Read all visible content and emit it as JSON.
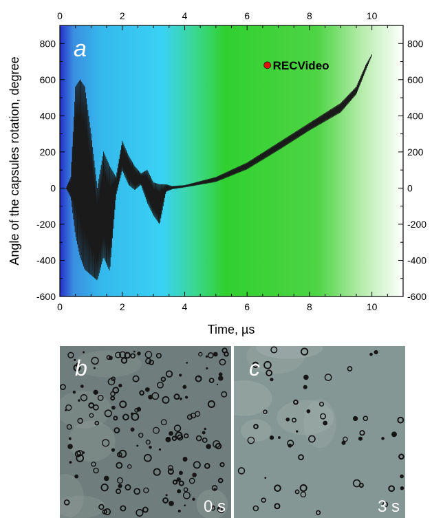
{
  "chart_data": {
    "type": "line",
    "xlabel": "Time, µs",
    "ylabel": "Angle of the capsules rotation, degree",
    "xlim": [
      0,
      11
    ],
    "ylim": [
      -600,
      900
    ],
    "x_ticks": [
      0,
      2,
      4,
      6,
      8,
      10
    ],
    "y_ticks": [
      -600,
      -400,
      -200,
      0,
      200,
      400,
      600,
      800
    ],
    "panel_label": "a",
    "annotation": "RECVideo",
    "annotation_point": {
      "x": 6.65,
      "y": 680
    },
    "annotation_color": "#e01010",
    "background_gradient": [
      "#2a3fd6",
      "#38c8f0",
      "#3ad43a",
      "#ffffff"
    ],
    "series": [
      {
        "color": "#1a1a1a",
        "envelope": {
          "x": [
            0,
            0.2,
            0.35,
            0.5,
            0.65,
            0.8,
            1.0,
            1.2,
            1.4,
            1.6,
            1.8,
            2.0,
            2.2,
            2.4,
            2.6,
            2.8,
            3.0,
            3.2,
            3.4,
            3.6,
            4.0,
            5.0,
            6.0,
            7.0,
            8.0,
            9.0,
            9.5,
            9.8,
            10.0
          ],
          "upper": [
            0,
            0,
            60,
            560,
            600,
            560,
            300,
            0,
            200,
            120,
            60,
            260,
            180,
            120,
            80,
            100,
            30,
            20,
            20,
            10,
            15,
            60,
            140,
            250,
            360,
            470,
            560,
            680,
            740
          ],
          "lower": [
            0,
            0,
            -50,
            -260,
            -380,
            -450,
            -480,
            -510,
            -380,
            -460,
            -40,
            100,
            20,
            -10,
            20,
            -80,
            -150,
            -200,
            -20,
            -5,
            5,
            35,
            105,
            210,
            320,
            420,
            520,
            650,
            735
          ]
        }
      }
    ],
    "photos": [
      {
        "letter": "b",
        "time": "0 s",
        "tone": "#6f7e7c"
      },
      {
        "letter": "c",
        "time": "3 s",
        "tone": "#859794"
      }
    ]
  }
}
